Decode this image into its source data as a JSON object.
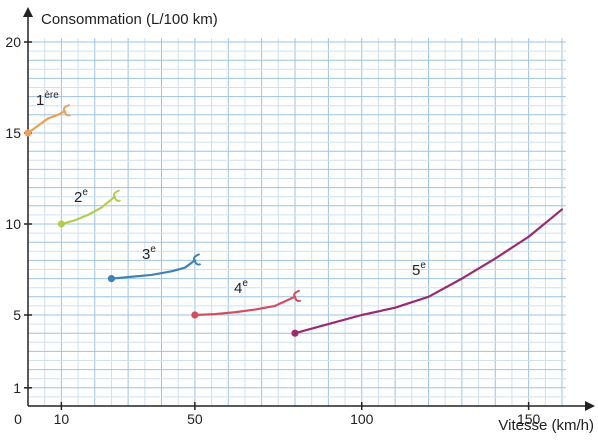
{
  "chart_data": {
    "type": "line",
    "title": "",
    "xlabel": "Vitesse (km/h)",
    "ylabel": "Consommation (L/100 km)",
    "xlim": [
      0,
      160
    ],
    "ylim": [
      0,
      20
    ],
    "grid": true,
    "x_ticks": [
      {
        "value": 0,
        "label": "0"
      },
      {
        "value": 10,
        "label": "10"
      },
      {
        "value": 50,
        "label": "50"
      },
      {
        "value": 100,
        "label": "100"
      },
      {
        "value": 150,
        "label": "150"
      }
    ],
    "y_ticks": [
      {
        "value": 1,
        "label": "1"
      },
      {
        "value": 5,
        "label": "5"
      },
      {
        "value": 10,
        "label": "10"
      },
      {
        "value": 15,
        "label": "15"
      },
      {
        "value": 20,
        "label": "20"
      }
    ],
    "series": [
      {
        "name": "1",
        "sup": "ère",
        "color": "#e9a15a",
        "x": [
          0,
          3,
          6,
          9,
          11
        ],
        "y": [
          15,
          15.4,
          15.8,
          16.0,
          16.2
        ]
      },
      {
        "name": "2",
        "sup": "e",
        "color": "#b5cc52",
        "x": [
          10,
          14,
          18,
          22,
          26
        ],
        "y": [
          10,
          10.2,
          10.5,
          10.9,
          11.5
        ]
      },
      {
        "name": "3",
        "sup": "e",
        "color": "#3f82b7",
        "x": [
          25,
          31,
          37,
          43,
          47,
          50
        ],
        "y": [
          7,
          7.1,
          7.2,
          7.4,
          7.6,
          8.0
        ]
      },
      {
        "name": "4",
        "sup": "e",
        "color": "#d14f60",
        "x": [
          50,
          56,
          62,
          68,
          74,
          80
        ],
        "y": [
          5,
          5.05,
          5.15,
          5.3,
          5.5,
          6.0
        ]
      },
      {
        "name": "5",
        "sup": "e",
        "color": "#9a2b6e",
        "x": [
          80,
          90,
          100,
          110,
          120,
          130,
          140,
          150,
          160
        ],
        "y": [
          4,
          4.5,
          5.0,
          5.4,
          6.0,
          7.0,
          8.1,
          9.3,
          10.8
        ]
      }
    ]
  }
}
